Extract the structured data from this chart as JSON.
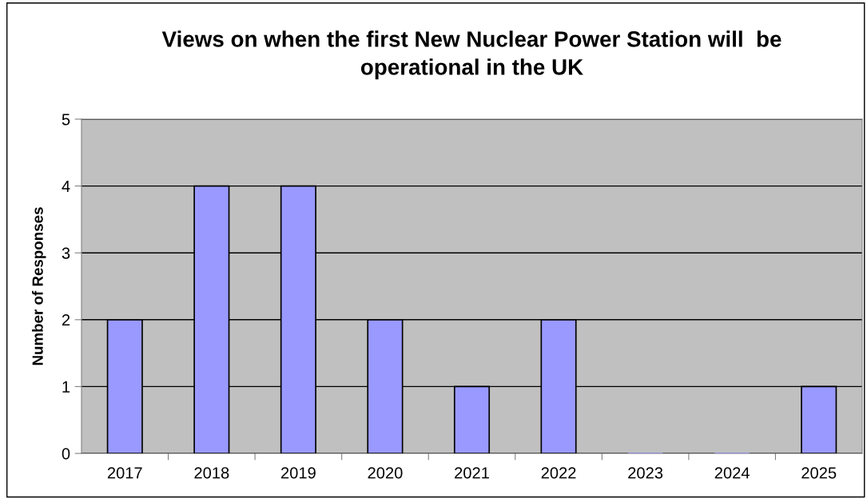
{
  "chart_data": {
    "type": "bar",
    "title": "Views on when the first New Nuclear Power Station will  be operational in the UK",
    "ylabel": "Number of Responses",
    "categories": [
      "2017",
      "2018",
      "2019",
      "2020",
      "2021",
      "2022",
      "2023",
      "2024",
      "2025"
    ],
    "values": [
      2,
      4,
      4,
      2,
      1,
      2,
      0,
      0,
      1
    ],
    "color": "#9999ff",
    "ylim": [
      0,
      5
    ],
    "yticks": [
      0,
      1,
      2,
      3,
      4,
      5
    ],
    "grid": "y",
    "legend": false
  }
}
